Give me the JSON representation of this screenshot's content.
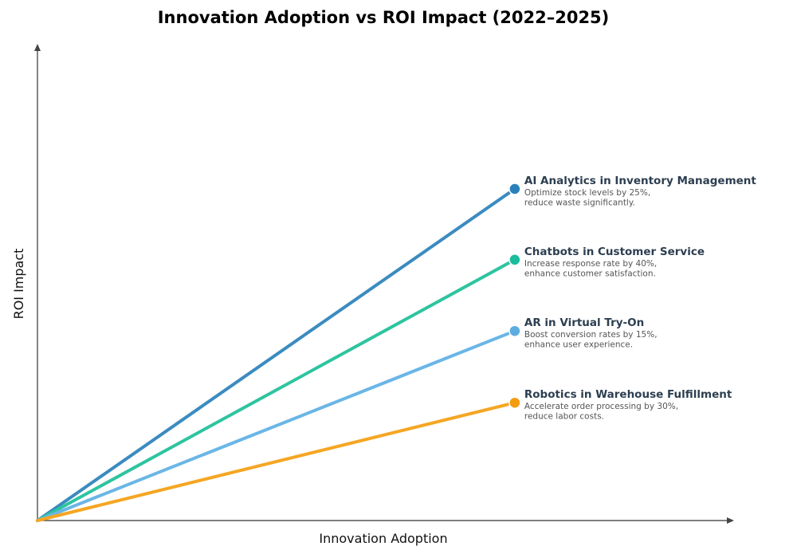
{
  "chart_data": {
    "type": "line",
    "title": "Innovation Adoption vs ROI Impact (2022–2025)",
    "xlabel": "Innovation Adoption",
    "ylabel": "ROI Impact",
    "xlim": [
      0,
      1
    ],
    "ylim": [
      0,
      1
    ],
    "grid": false,
    "ticks": false,
    "series": [
      {
        "name": "AI Analytics in Inventory Management",
        "desc": [
          "Optimize stock levels by 25%,",
          "reduce waste significantly."
        ],
        "x": [
          0,
          0.686
        ],
        "y": [
          0,
          0.698
        ],
        "line_color": "#3b8bc0",
        "marker_color": "#2980b9"
      },
      {
        "name": "Chatbots in Customer Service",
        "desc": [
          "Increase response rate by 40%,",
          "enhance customer satisfaction."
        ],
        "x": [
          0,
          0.686
        ],
        "y": [
          0,
          0.549
        ],
        "line_color": "#2ec4a0",
        "marker_color": "#1abc9c"
      },
      {
        "name": "AR in Virtual Try-On",
        "desc": [
          "Boost conversion rates by 15%,",
          "enhance user experience."
        ],
        "x": [
          0,
          0.686
        ],
        "y": [
          0,
          0.399
        ],
        "line_color": "#6ab6e6",
        "marker_color": "#5dade2"
      },
      {
        "name": "Robotics in Warehouse Fulfillment",
        "desc": [
          "Accelerate order processing by 30%,",
          "reduce labor costs."
        ],
        "x": [
          0,
          0.686
        ],
        "y": [
          0,
          0.248
        ],
        "line_color": "#f5a623",
        "marker_color": "#f39c12"
      }
    ]
  }
}
